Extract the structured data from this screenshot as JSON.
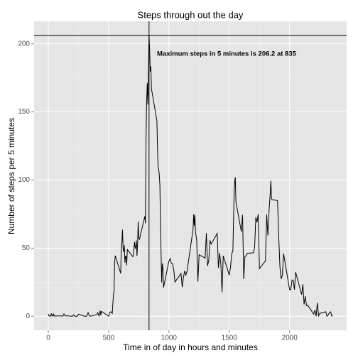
{
  "chart_data": {
    "type": "line",
    "title": "Steps through out the day",
    "x_label": "Time in of day in hours and minutes",
    "y_label": "Number of steps per 5 minutes",
    "annotation": "Maximum steps in 5 minutes is  206.2  at  835",
    "reference_lines": {
      "y": 206.2,
      "x": 835
    },
    "xlim": [
      -117.75,
      2472.75
    ],
    "ylim": [
      -10.3,
      216.5
    ],
    "xticks": [
      0,
      500,
      1000,
      1500,
      2000
    ],
    "yticks": [
      0,
      50,
      100,
      150,
      200
    ],
    "grid": true,
    "x": [
      0,
      5,
      10,
      15,
      20,
      25,
      30,
      35,
      40,
      45,
      50,
      55,
      100,
      110,
      120,
      130,
      140,
      150,
      200,
      210,
      220,
      230,
      240,
      250,
      300,
      310,
      320,
      330,
      340,
      350,
      400,
      410,
      420,
      430,
      435,
      440,
      450,
      500,
      510,
      520,
      530,
      540,
      545,
      550,
      555,
      600,
      605,
      610,
      615,
      620,
      625,
      630,
      635,
      640,
      645,
      650,
      655,
      700,
      705,
      710,
      715,
      720,
      725,
      730,
      735,
      740,
      745,
      750,
      755,
      800,
      805,
      810,
      815,
      820,
      825,
      830,
      835,
      840,
      845,
      850,
      855,
      900,
      905,
      910,
      915,
      920,
      925,
      930,
      935,
      940,
      945,
      950,
      955,
      1000,
      1010,
      1020,
      1030,
      1040,
      1050,
      1100,
      1110,
      1120,
      1130,
      1140,
      1150,
      1200,
      1205,
      1210,
      1215,
      1220,
      1230,
      1240,
      1250,
      1300,
      1310,
      1320,
      1330,
      1340,
      1350,
      1400,
      1410,
      1420,
      1430,
      1440,
      1450,
      1500,
      1510,
      1520,
      1530,
      1540,
      1545,
      1550,
      1555,
      1600,
      1610,
      1620,
      1630,
      1640,
      1650,
      1700,
      1710,
      1720,
      1730,
      1740,
      1750,
      1800,
      1810,
      1820,
      1830,
      1840,
      1845,
      1850,
      1855,
      1900,
      1910,
      1920,
      1930,
      1940,
      1950,
      2000,
      2010,
      2020,
      2030,
      2040,
      2050,
      2100,
      2110,
      2120,
      2130,
      2140,
      2150,
      2200,
      2210,
      2220,
      2230,
      2240,
      2250,
      2300,
      2310,
      2320,
      2330,
      2340,
      2350,
      2355
    ],
    "series": [
      {
        "name": "steps",
        "color": "#000000",
        "values": [
          1.7,
          0.3,
          0.1,
          0.2,
          0.1,
          2.1,
          0.5,
          0.9,
          0,
          1.5,
          0.3,
          0.1,
          0.3,
          0.2,
          0,
          1.8,
          0.2,
          0.3,
          0,
          1.1,
          0,
          0,
          0,
          1.5,
          0,
          0,
          0.2,
          2.6,
          0.5,
          0,
          1.2,
          2.6,
          0.3,
          4.1,
          0.7,
          3.5,
          3.1,
          0,
          3,
          3.3,
          2.1,
          16,
          18.3,
          39.5,
          44.5,
          31.5,
          49.3,
          53.8,
          63.5,
          50,
          47.1,
          52.2,
          39.3,
          44,
          44.2,
          37.4,
          49,
          43.8,
          44.4,
          50.5,
          54.5,
          49.9,
          50.9,
          55.7,
          44.3,
          52.3,
          69.5,
          57.8,
          56.2,
          73.4,
          68.2,
          129.4,
          157.5,
          171.2,
          155.4,
          177.3,
          206.2,
          195.9,
          179.6,
          183.4,
          167,
          143.5,
          124,
          109.1,
          108.1,
          103.7,
          95.9,
          66.2,
          45.2,
          24.8,
          38.8,
          35,
          21.1,
          40.6,
          42.4,
          38.9,
          38.6,
          34,
          25.1,
          31.4,
          21.3,
          28.4,
          33.4,
          30.2,
          33,
          63.9,
          75,
          66.5,
          74.2,
          62.1,
          55.7,
          25.5,
          45.1,
          42.7,
          61,
          37,
          41,
          55.8,
          53,
          60.8,
          35.5,
          46.3,
          38.7,
          17.7,
          44.3,
          30.2,
          36,
          45.7,
          48.1,
          90.3,
          98.7,
          102.1,
          83.9,
          62.1,
          74.5,
          27.3,
          44.2,
          44.3,
          46.2,
          46.6,
          50.5,
          72.7,
          68.9,
          75.1,
          35,
          40.7,
          74.7,
          59.3,
          77.7,
          91.2,
          99.5,
          86.6,
          85.6,
          84.9,
          58,
          36.1,
          27.4,
          30,
          46,
          19.6,
          19.3,
          26.6,
          26.6,
          19.5,
          32.3,
          15.9,
          23.5,
          8.7,
          14.7,
          7.8,
          8.1,
          1.6,
          4.6,
          0,
          9.8,
          0.3,
          2.1,
          3.3,
          0,
          1,
          2.6,
          3.3,
          0.2,
          1.1
        ]
      }
    ]
  }
}
